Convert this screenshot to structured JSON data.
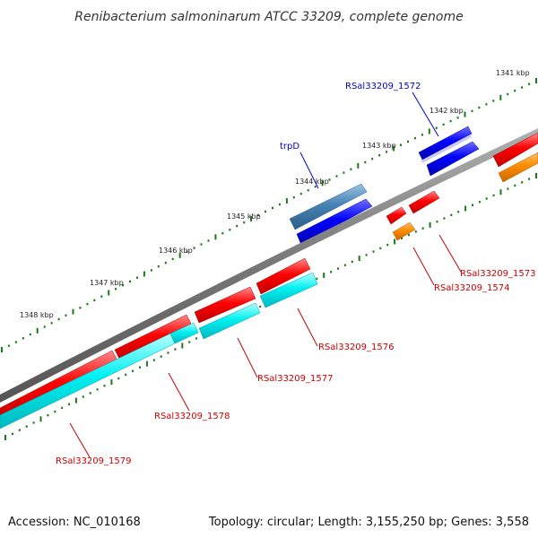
{
  "title": "Renibacterium salmoninarum ATCC 33209, complete genome",
  "footer": {
    "accession": "Accession: NC_010168",
    "topology": "Topology: circular; Length: 3,155,250 bp; Genes: 3,558"
  },
  "colors": {
    "backbone": "#7a7a7a",
    "tick": "#1a7a1a",
    "red": "#ff0000",
    "blue": "#0000ff",
    "steelblue": "#4682b4",
    "cyan": "#00ffff",
    "orange": "#ff8c00",
    "label_blue": "#0000cc",
    "label_red": "#cc0000"
  },
  "scale_labels": [
    "1341 kbp",
    "1342 kbp",
    "1343 kbp",
    "1344 kbp",
    "1345 kbp",
    "1346 kbp",
    "1347 kbp",
    "1348 kbp"
  ],
  "gene_labels": {
    "rsal_1572": "RSal33209_1572",
    "trpd": "trpD",
    "rsal_1573": "RSal33209_1573",
    "rsal_1574": "RSal33209_1574",
    "rsal_1576": "RSal33209_1576",
    "rsal_1577": "RSal33209_1577",
    "rsal_1578": "RSal33209_1578",
    "rsal_1579": "RSal33209_1579"
  }
}
